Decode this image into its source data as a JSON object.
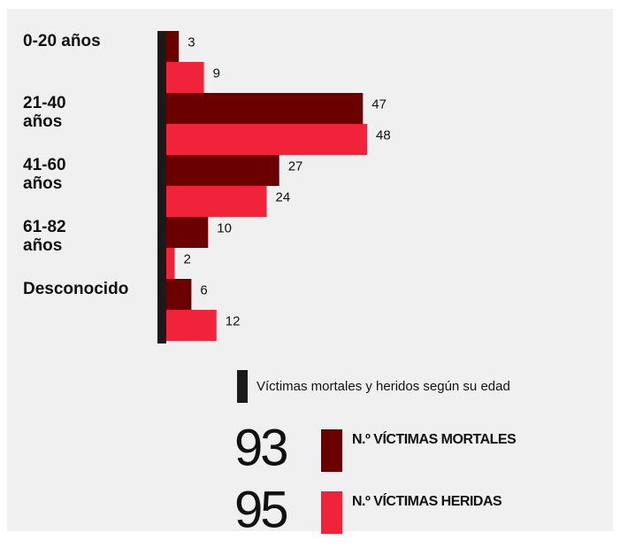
{
  "chart_data": {
    "type": "bar",
    "orientation": "horizontal",
    "categories": [
      "0-20 años",
      "21-40 años",
      "41-60 años",
      "61-82 años",
      "Desconocido"
    ],
    "series": [
      {
        "name": "N.º VÍCTIMAS MORTALES",
        "color": "#6b0000",
        "values": [
          3,
          47,
          27,
          10,
          6
        ],
        "total": 93
      },
      {
        "name": "N.º VÍCTIMAS HERIDAS",
        "color": "#f0233a",
        "values": [
          9,
          48,
          24,
          2,
          12
        ],
        "total": 95
      }
    ],
    "legend_title": "Víctimas mortales y heridos según su edad"
  }
}
